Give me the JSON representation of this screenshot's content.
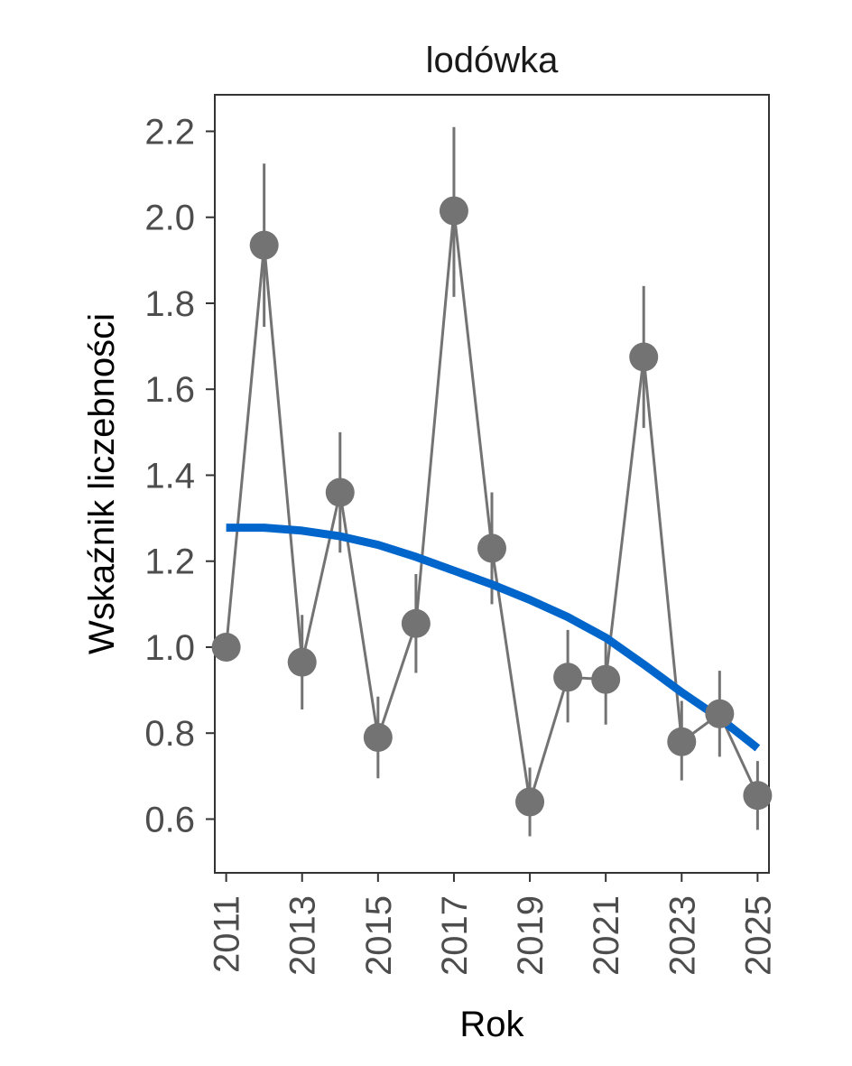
{
  "chart_data": {
    "type": "line",
    "title": "lodówka",
    "xlabel": "Rok",
    "ylabel": "Wskaźnik liczebności",
    "xlim": [
      2010.7,
      2025.3
    ],
    "ylim": [
      0.475,
      2.285
    ],
    "x_ticks": [
      2011,
      2013,
      2015,
      2017,
      2019,
      2021,
      2023,
      2025
    ],
    "x_tick_labels": [
      "2011",
      "2013",
      "2015",
      "2017",
      "2019",
      "2021",
      "2023",
      "2025"
    ],
    "y_ticks": [
      0.6,
      0.8,
      1.0,
      1.2,
      1.4,
      1.6,
      1.8,
      2.0,
      2.2
    ],
    "y_tick_labels": [
      "0.6",
      "0.8",
      "1.0",
      "1.2",
      "1.4",
      "1.6",
      "1.8",
      "2.0",
      "2.2"
    ],
    "grid": false,
    "colors": {
      "points": "#737373",
      "error_bars": "#737373",
      "trend": "#0066cc",
      "axes": "#333333"
    },
    "series": [
      {
        "kind": "points_with_error_bars",
        "x": [
          2011,
          2012,
          2013,
          2014,
          2015,
          2016,
          2017,
          2018,
          2019,
          2020,
          2021,
          2022,
          2023,
          2024,
          2025
        ],
        "y": [
          1.0,
          1.935,
          0.965,
          1.36,
          0.79,
          1.055,
          2.015,
          1.23,
          0.64,
          0.93,
          0.925,
          1.675,
          0.78,
          0.845,
          0.655
        ],
        "lower": [
          null,
          1.745,
          0.855,
          1.22,
          0.695,
          0.94,
          1.815,
          1.1,
          0.56,
          0.825,
          0.82,
          1.51,
          0.69,
          0.745,
          0.575
        ],
        "upper": [
          null,
          2.125,
          1.075,
          1.5,
          0.885,
          1.17,
          2.21,
          1.36,
          0.72,
          1.04,
          1.025,
          1.84,
          0.875,
          0.945,
          0.735
        ]
      },
      {
        "kind": "trend",
        "x": [
          2011,
          2012,
          2013,
          2014,
          2015,
          2016,
          2017,
          2018,
          2019,
          2020,
          2021,
          2022,
          2023,
          2024,
          2025
        ],
        "y": [
          1.278,
          1.278,
          1.271,
          1.258,
          1.238,
          1.21,
          1.178,
          1.146,
          1.11,
          1.07,
          1.022,
          0.96,
          0.895,
          0.835,
          0.765
        ]
      }
    ]
  }
}
